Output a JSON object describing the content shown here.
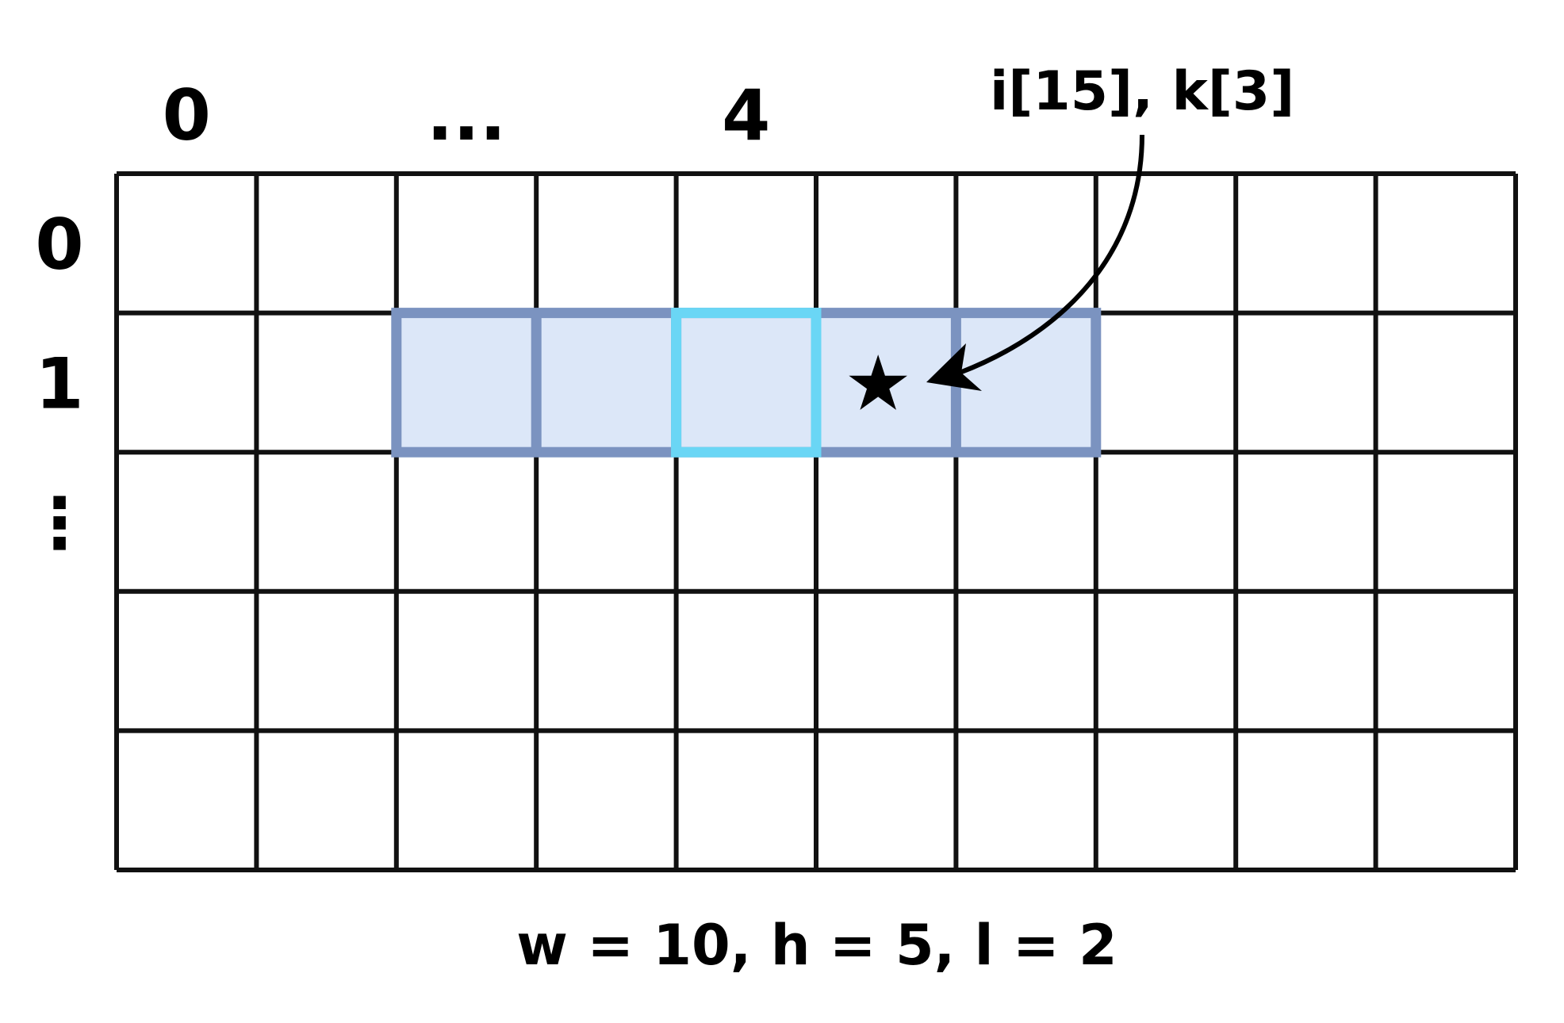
{
  "grid": {
    "columns": 10,
    "rows": 5,
    "column_labels": [
      {
        "col": 0,
        "text": "0"
      },
      {
        "col": 2,
        "text": "..."
      },
      {
        "col": 4,
        "text": "4"
      }
    ],
    "row_labels": [
      {
        "row": 0,
        "text": "0"
      },
      {
        "row": 1,
        "text": "1"
      },
      {
        "row": 2,
        "text": "⋮"
      }
    ],
    "line_color": "#111111"
  },
  "window": {
    "row": 1,
    "start_col": 2,
    "end_col": 6,
    "fill_color": "#dce7f8",
    "border_color": "#7b93c0"
  },
  "center_cell": {
    "row": 1,
    "col": 4,
    "border_color": "#6ad6f5"
  },
  "target": {
    "row": 1,
    "col": 5,
    "symbol": "★"
  },
  "annotation": {
    "text": "i[15], k[3]"
  },
  "caption": {
    "text": "w = 10, h = 5, l = 2"
  }
}
